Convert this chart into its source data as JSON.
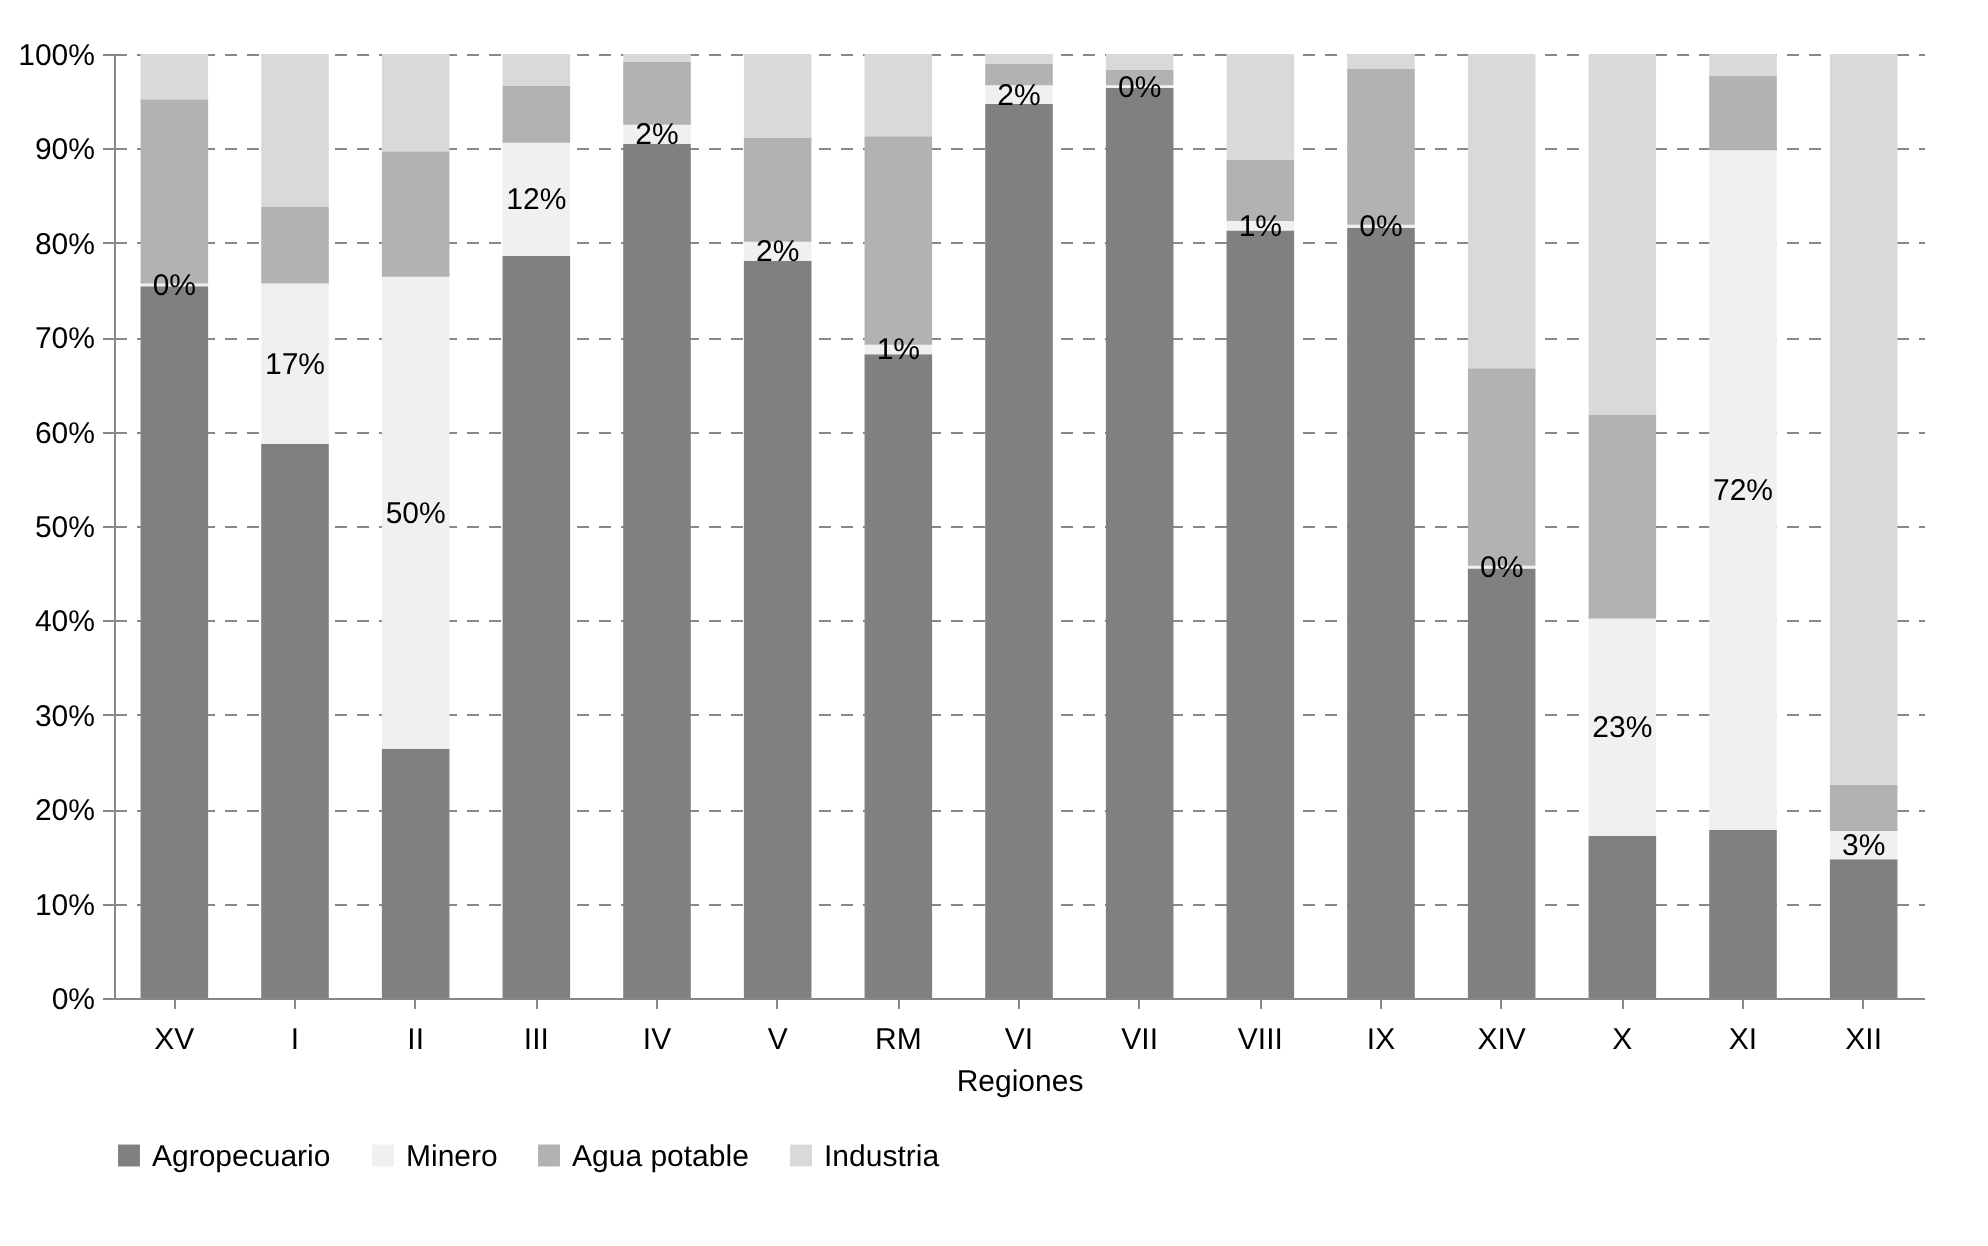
{
  "chart_data": {
    "type": "bar",
    "stacked": true,
    "xlabel": "Regiones",
    "categories": [
      "XV",
      "I",
      "II",
      "III",
      "IV",
      "V",
      "RM",
      "VI",
      "VII",
      "VIII",
      "IX",
      "XIV",
      "X",
      "XI",
      "XII"
    ],
    "series": [
      {
        "name": "Agropecuario",
        "color": "#808080",
        "values": [
          75.4,
          58.7,
          26.4,
          78.6,
          90.5,
          78.1,
          68.2,
          94.7,
          96.4,
          81.3,
          81.6,
          45.5,
          17.2,
          17.8,
          14.7
        ]
      },
      {
        "name": "Minero",
        "color": "#f0f0f0",
        "values": [
          0.3,
          17,
          50,
          12,
          2,
          2,
          1,
          2,
          0.3,
          1,
          0.3,
          0.3,
          23,
          72,
          3
        ],
        "value_labels": [
          "0%",
          "17%",
          "50%",
          "12%",
          "2%",
          "2%",
          "1%",
          "2%",
          "0%",
          "1%",
          "0%",
          "0%",
          "23%",
          "72%",
          "3%"
        ]
      },
      {
        "name": "Agua potable",
        "color": "#b2b2b2",
        "values": [
          19.5,
          8.1,
          13.3,
          6.0,
          6.7,
          11.0,
          22.1,
          2.3,
          1.6,
          6.5,
          16.5,
          20.9,
          21.6,
          7.9,
          4.9
        ]
      },
      {
        "name": "Industria",
        "color": "#d9d9d9",
        "values": [
          4.8,
          16.2,
          10.3,
          3.4,
          0.8,
          8.9,
          8.7,
          1.0,
          1.7,
          11.2,
          1.6,
          33.3,
          38.2,
          2.3,
          77.4
        ]
      }
    ],
    "ylim": [
      0,
      100
    ],
    "yticks": [
      {
        "value": 0,
        "label": "0%"
      },
      {
        "value": 10,
        "label": "10%"
      },
      {
        "value": 20,
        "label": "20%"
      },
      {
        "value": 30,
        "label": "30%"
      },
      {
        "value": 40,
        "label": "40%"
      },
      {
        "value": 50,
        "label": "50%"
      },
      {
        "value": 60,
        "label": "60%"
      },
      {
        "value": 70,
        "label": "70%"
      },
      {
        "value": 80,
        "label": "80%"
      },
      {
        "value": 90,
        "label": "90%"
      },
      {
        "value": 100,
        "label": "100%"
      }
    ],
    "grid": "y",
    "legend": "bottom"
  }
}
